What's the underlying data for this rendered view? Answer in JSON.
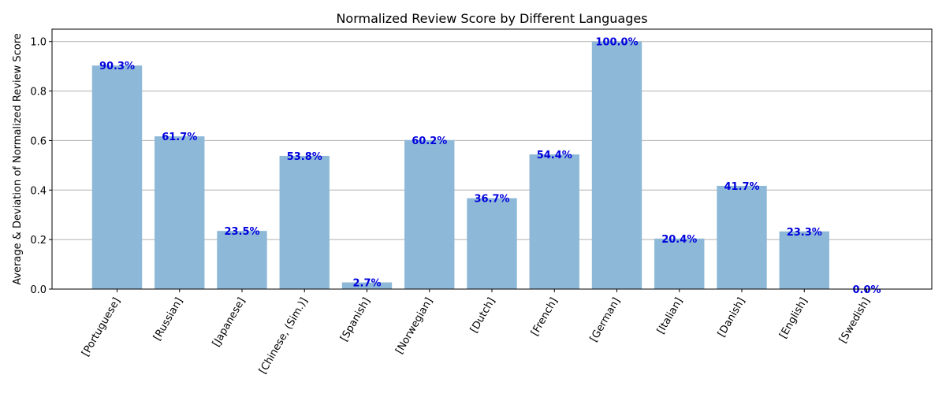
{
  "chart_data": {
    "type": "bar",
    "title": "Normalized Review Score by Different Languages",
    "xlabel": "",
    "ylabel": "Average & Deviation of Normalized Review Score",
    "categories": [
      "[Portuguese]",
      "[Russian]",
      "[Japanese]",
      "[Chinese, (Sim.)]",
      "[Spanish]",
      "[Norwegian]",
      "[Dutch]",
      "[French]",
      "[German]",
      "[Italian]",
      "[Danish]",
      "[English]",
      "[Swedish]"
    ],
    "values": [
      0.903,
      0.617,
      0.235,
      0.538,
      0.027,
      0.602,
      0.367,
      0.544,
      1.0,
      0.204,
      0.417,
      0.233,
      0.0
    ],
    "value_labels": [
      "90.3%",
      "61.7%",
      "23.5%",
      "53.8%",
      "2.7%",
      "60.2%",
      "36.7%",
      "54.4%",
      "100.0%",
      "20.4%",
      "41.7%",
      "23.3%",
      "0.0%"
    ],
    "ylim": [
      0,
      1.05
    ],
    "yticks": [
      0.0,
      0.2,
      0.4,
      0.6,
      0.8,
      1.0
    ],
    "ytick_labels": [
      "0.0",
      "0.2",
      "0.4",
      "0.6",
      "0.8",
      "1.0"
    ],
    "grid": "horizontal",
    "bar_color": "#8db8d8",
    "label_color": "#0000dd"
  }
}
